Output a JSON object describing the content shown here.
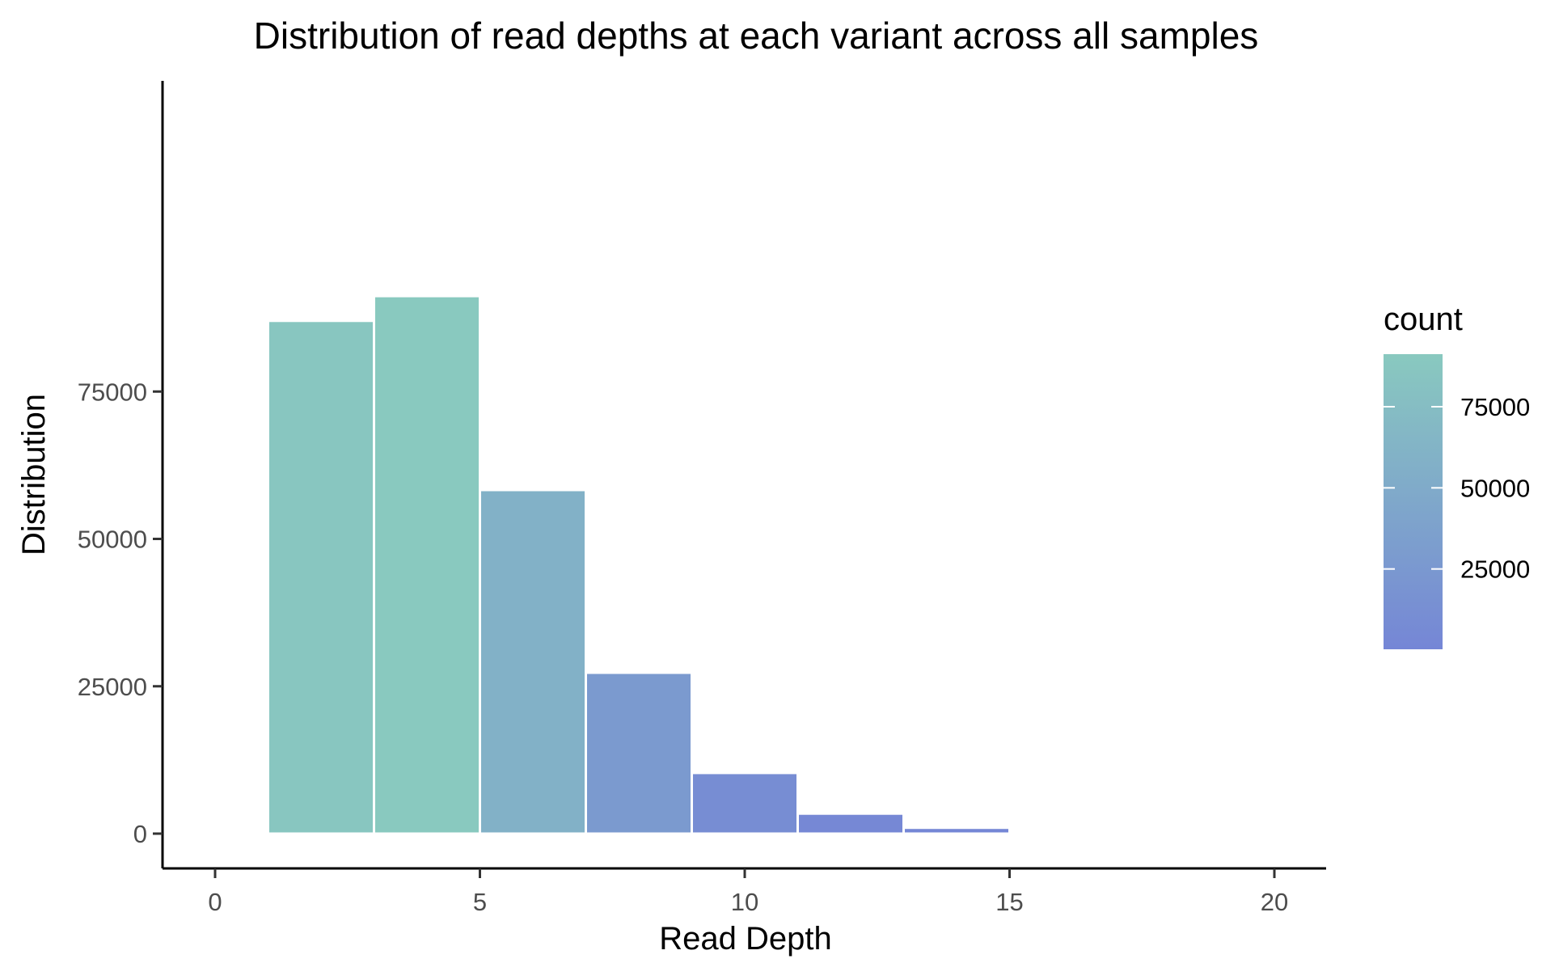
{
  "chart_data": {
    "type": "bar",
    "subtype": "histogram",
    "title": "Distribution of read depths at each variant across all samples",
    "xlabel": "Read Depth",
    "ylabel": "Distribution",
    "xlim": [
      -1,
      21
    ],
    "ylim": [
      0,
      92000
    ],
    "x_ticks": [
      0,
      5,
      10,
      15,
      20
    ],
    "x_tick_labels": [
      "0",
      "5",
      "10",
      "15",
      "20"
    ],
    "y_ticks": [
      0,
      25000,
      50000,
      75000
    ],
    "y_tick_labels": [
      "0",
      "25000",
      "50000",
      "75000"
    ],
    "bins": [
      {
        "x_start": 1,
        "x_end": 3,
        "count": 87000
      },
      {
        "x_start": 3,
        "x_end": 5,
        "count": 91200
      },
      {
        "x_start": 5,
        "x_end": 7,
        "count": 58300
      },
      {
        "x_start": 7,
        "x_end": 9,
        "count": 27300
      },
      {
        "x_start": 9,
        "x_end": 11,
        "count": 10300
      },
      {
        "x_start": 11,
        "x_end": 13,
        "count": 3400
      },
      {
        "x_start": 13,
        "x_end": 15,
        "count": 1000
      },
      {
        "x_start": 15,
        "x_end": 17,
        "count": 250
      }
    ],
    "grid": false,
    "fill_scale": {
      "variable": "count",
      "low_color": "#7586d6",
      "high_color": "#89c9bf",
      "min": 250,
      "max": 91200
    },
    "legend": {
      "title": "count",
      "position": "right",
      "breaks": [
        75000,
        50000,
        25000
      ],
      "break_labels": [
        "75000",
        "50000",
        "25000"
      ]
    }
  }
}
